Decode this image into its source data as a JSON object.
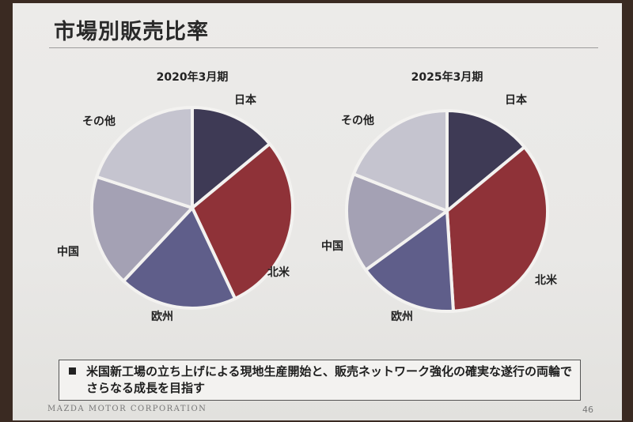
{
  "slide": {
    "title": "市場別販売比率",
    "bullet": "米国新工場の立ち上げによる現地生産開始と、販売ネットワーク強化の確実な遂行の両輪でさらなる成長を目指す",
    "footer": "MAZDA MOTOR CORPORATION",
    "page_number": "46"
  },
  "colors": {
    "日本": "#3e3a55",
    "北米": "#8f3238",
    "欧州": "#5f5e8a",
    "中国": "#a4a1b4",
    "その他": "#c5c4cf"
  },
  "chart_data": [
    {
      "type": "pie",
      "title": "2020年3月期",
      "start_angle_deg": 0,
      "direction": "clockwise",
      "slices": [
        {
          "label": "日本",
          "value": 14
        },
        {
          "label": "北米",
          "value": 29
        },
        {
          "label": "欧州",
          "value": 19
        },
        {
          "label": "中国",
          "value": 18
        },
        {
          "label": "その他",
          "value": 20
        }
      ]
    },
    {
      "type": "pie",
      "title": "2025年3月期",
      "start_angle_deg": 0,
      "direction": "clockwise",
      "slices": [
        {
          "label": "日本",
          "value": 14
        },
        {
          "label": "北米",
          "value": 35
        },
        {
          "label": "欧州",
          "value": 16
        },
        {
          "label": "中国",
          "value": 16
        },
        {
          "label": "その他",
          "value": 19
        }
      ]
    }
  ]
}
